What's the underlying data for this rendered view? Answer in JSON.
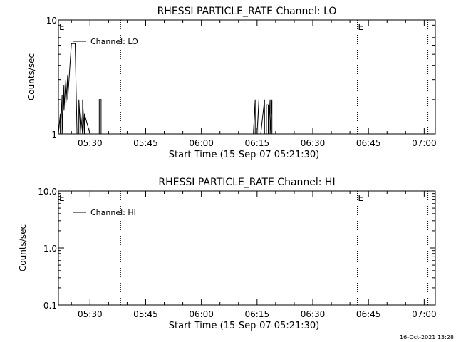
{
  "footer": {
    "timestamp": "16-Oct-2021 13:28"
  },
  "chart_data": [
    {
      "type": "line",
      "title": "RHESSI PARTICLE_RATE Channel: LO",
      "xlabel": "Start Time (15-Sep-07 05:21:30)",
      "ylabel": "Counts/sec",
      "y_scale": "log",
      "ylim": [
        1,
        10
      ],
      "y_ticks": [
        "10",
        "1"
      ],
      "xlim": [
        "05:21:30",
        "07:03:00"
      ],
      "x_ticks": [
        "05:30",
        "05:45",
        "06:00",
        "06:15",
        "06:30",
        "06:45",
        "07:00"
      ],
      "legend": {
        "label": "Channel: LO",
        "placement": "top-left"
      },
      "event_markers": [
        {
          "label": "E",
          "time": "05:21:30",
          "dotted": false
        },
        {
          "time": "05:38:15",
          "dotted": true
        },
        {
          "label": "E",
          "time": "06:42:00",
          "dotted": true
        },
        {
          "time": "07:01:00",
          "dotted": true
        }
      ],
      "series": [
        {
          "name": "Channel: LO",
          "color": "#000000",
          "x": [
            "05:21:30",
            "05:22:00",
            "05:22:00",
            "05:22:30",
            "05:22:30",
            "05:23:00",
            "05:23:00",
            "05:23:30",
            "05:23:30",
            "05:24:00",
            "05:24:00",
            "05:25:00",
            "05:26:00",
            "05:26:30",
            "05:27:00",
            "05:27:00",
            "05:27:30",
            "05:27:30",
            "05:28:00",
            "05:28:00",
            "05:28:30",
            "05:28:30",
            "05:30:00",
            "05:32:30",
            "05:32:30",
            "05:33:00",
            "05:33:00",
            "05:33:30",
            "06:14:00",
            "06:14:30",
            "06:14:30",
            "06:15:00",
            "06:15:00",
            "06:15:30",
            "06:15:30",
            "06:16:00",
            "06:16:00",
            "06:17:00",
            "06:17:00",
            "06:17:30",
            "06:17:30",
            "06:18:00",
            "06:18:00",
            "06:18:30",
            "06:18:30",
            "06:19:00",
            "06:19:00",
            "06:19:30"
          ],
          "y": [
            1,
            1.5,
            1,
            2.2,
            1,
            2.7,
            1.6,
            3.0,
            1.8,
            3.3,
            2.0,
            6.2,
            6.2,
            1,
            1,
            2.0,
            1,
            1.5,
            1,
            2.0,
            1,
            1.5,
            1,
            1,
            2.0,
            2.0,
            1,
            1,
            1,
            2.0,
            1,
            1,
            1,
            2.0,
            1,
            1,
            1,
            2.0,
            1,
            1,
            1.8,
            1.8,
            1,
            2.0,
            1,
            2.0,
            1,
            1
          ]
        }
      ]
    },
    {
      "type": "line",
      "title": "RHESSI PARTICLE_RATE Channel: HI",
      "xlabel": "Start Time (15-Sep-07 05:21:30)",
      "ylabel": "Counts/sec",
      "y_scale": "log",
      "ylim": [
        0.1,
        10
      ],
      "y_ticks": [
        "10.0",
        "1.0",
        "0.1"
      ],
      "xlim": [
        "05:21:30",
        "07:03:00"
      ],
      "x_ticks": [
        "05:30",
        "05:45",
        "06:00",
        "06:15",
        "06:30",
        "06:45",
        "07:00"
      ],
      "legend": {
        "label": "Channel: HI",
        "placement": "top-left"
      },
      "event_markers": [
        {
          "label": "E",
          "time": "05:21:30",
          "dotted": false
        },
        {
          "time": "05:38:15",
          "dotted": true
        },
        {
          "label": "E",
          "time": "06:42:00",
          "dotted": true
        },
        {
          "time": "07:01:00",
          "dotted": true
        }
      ],
      "series": [
        {
          "name": "Channel: HI",
          "color": "#000000",
          "x": [],
          "y": []
        }
      ]
    }
  ]
}
